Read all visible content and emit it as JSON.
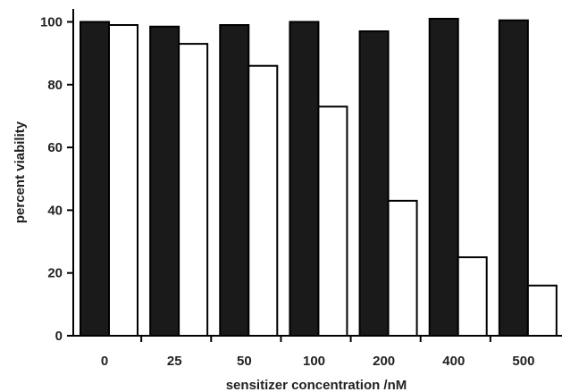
{
  "chart_data": {
    "type": "bar",
    "title": "",
    "xlabel": "sensitizer concentration /nM",
    "ylabel": "percent viability",
    "categories": [
      "0",
      "25",
      "50",
      "100",
      "200",
      "400",
      "500"
    ],
    "series": [
      {
        "values": [
          100,
          98.5,
          99,
          100,
          97,
          101,
          100.5
        ],
        "color": "#1a1a1a"
      },
      {
        "values": [
          99,
          93,
          86,
          73,
          43,
          25,
          16
        ],
        "color": "#ffffff"
      }
    ],
    "ylim": [
      0,
      105
    ],
    "yticks": [
      0,
      20,
      40,
      60,
      80,
      100
    ],
    "grid": false,
    "legend": "none"
  }
}
